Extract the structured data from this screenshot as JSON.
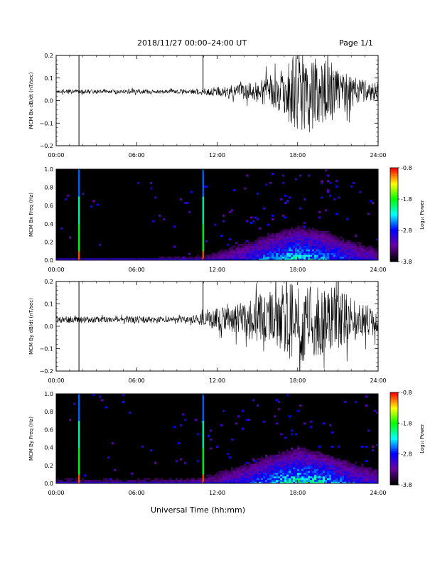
{
  "header": {
    "title": "2018/11/27  00:00–24:00 UT",
    "page": "Page 1/1"
  },
  "footer": {
    "xlabel": "Universal Time (hh:mm)"
  },
  "colorbar": {
    "label": "Log₁₀ Power",
    "ticks": [
      "-0.8",
      "-1.8",
      "-2.8",
      "-3.8"
    ],
    "colors": [
      "#ff0000",
      "#ffff00",
      "#00ff00",
      "#00ffff",
      "#0000ff",
      "#6a00a0",
      "#000000"
    ]
  },
  "chart_data": [
    {
      "type": "line",
      "ylabel": "MCM Bx dB/dt (nT/sec)",
      "xticks": [
        "00:00",
        "06:00",
        "12:00",
        "18:00",
        "24:00"
      ],
      "yticks": [
        "0.2",
        "0.1",
        "0.0",
        "−0.1",
        "−0.2"
      ],
      "xlim": [
        0,
        24
      ],
      "ylim": [
        -0.2,
        0.2
      ],
      "baseline": 0.04,
      "series": [
        {
          "x": [
            0,
            2,
            4,
            6,
            8,
            10,
            11,
            12,
            13,
            14,
            15,
            16,
            17,
            17.5,
            18,
            19,
            20,
            21,
            22,
            23,
            24
          ],
          "amplitude": [
            0.01,
            0.01,
            0.008,
            0.01,
            0.008,
            0.01,
            0.015,
            0.02,
            0.025,
            0.035,
            0.05,
            0.07,
            0.1,
            0.15,
            0.2,
            0.15,
            0.14,
            0.12,
            0.07,
            0.05,
            0.04
          ]
        }
      ],
      "spikes": [
        {
          "x": 1.7,
          "min": -0.2,
          "max": 0.2
        },
        {
          "x": 10.95,
          "min": 0.04,
          "max": 0.2
        }
      ]
    },
    {
      "type": "heatmap",
      "ylabel": "MCM Bx Freq (Hz)",
      "xticks": [
        "00:00",
        "06:00",
        "12:00",
        "18:00",
        "24:00"
      ],
      "yticks": [
        "1.0",
        "0.8",
        "0.6",
        "0.4",
        "0.2",
        "0.0"
      ],
      "xlim": [
        0,
        24
      ],
      "ylim": [
        0,
        1.0
      ],
      "zlim": [
        -3.8,
        -0.8
      ],
      "activity_profile": {
        "x": [
          0,
          6,
          11,
          14,
          16,
          18,
          20,
          22,
          24
        ],
        "level": [
          0.15,
          0.15,
          0.2,
          0.45,
          0.65,
          0.8,
          0.7,
          0.5,
          0.35
        ]
      },
      "spikes": [
        1.7,
        10.95
      ]
    },
    {
      "type": "line",
      "ylabel": "MCM By dB/dt (nT/sec)",
      "xticks": [
        "00:00",
        "06:00",
        "12:00",
        "18:00",
        "24:00"
      ],
      "yticks": [
        "0.2",
        "0.1",
        "0.0",
        "−0.1",
        "−0.2"
      ],
      "xlim": [
        0,
        24
      ],
      "ylim": [
        -0.2,
        0.2
      ],
      "baseline": 0.03,
      "series": [
        {
          "x": [
            0,
            2,
            4,
            6,
            8,
            10,
            11,
            12,
            13,
            14,
            15,
            16,
            17,
            18,
            19,
            20,
            21,
            22,
            23,
            24
          ],
          "amplitude": [
            0.015,
            0.015,
            0.012,
            0.015,
            0.012,
            0.015,
            0.03,
            0.05,
            0.06,
            0.08,
            0.1,
            0.12,
            0.16,
            0.2,
            0.17,
            0.16,
            0.14,
            0.1,
            0.08,
            0.06
          ]
        }
      ],
      "spikes": [
        {
          "x": 1.7,
          "min": -0.2,
          "max": 0.2
        },
        {
          "x": 10.95,
          "min": 0.03,
          "max": 0.2
        }
      ]
    },
    {
      "type": "heatmap",
      "ylabel": "MCM By Freq (Hz)",
      "xticks": [
        "00:00",
        "06:00",
        "12:00",
        "18:00",
        "24:00"
      ],
      "yticks": [
        "1.0",
        "0.8",
        "0.6",
        "0.4",
        "0.2",
        "0.0"
      ],
      "xlim": [
        0,
        24
      ],
      "ylim": [
        0,
        1.0
      ],
      "zlim": [
        -3.8,
        -0.8
      ],
      "activity_profile": {
        "x": [
          0,
          6,
          11,
          14,
          16,
          18,
          20,
          22,
          24
        ],
        "level": [
          0.2,
          0.2,
          0.25,
          0.5,
          0.7,
          0.85,
          0.75,
          0.55,
          0.4
        ]
      },
      "spikes": [
        1.7,
        10.95
      ]
    }
  ]
}
